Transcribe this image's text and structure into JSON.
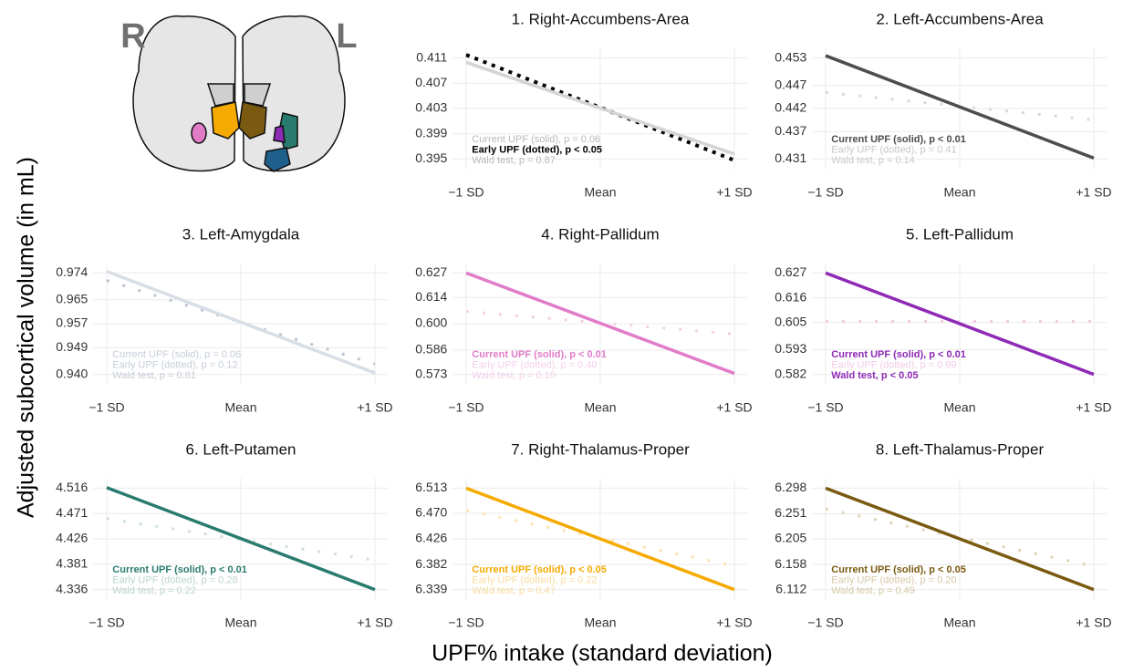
{
  "brain": {
    "right": "R",
    "left": "L"
  },
  "ylabel": "Adjusted subcortical volume (in mL)",
  "xlabel": "UPF% intake (standard deviation)",
  "chart_data": [
    {
      "type": "line",
      "title": "1. Right-Accumbens-Area",
      "x": [
        -1,
        1
      ],
      "xlim": [
        -1.1,
        1.1
      ],
      "xticks": [
        {
          "value": -1,
          "label": "−1 SD"
        },
        {
          "value": 0,
          "label": "Mean"
        },
        {
          "value": 1,
          "label": "+1 SD"
        }
      ],
      "ylim": [
        0.3934,
        0.4126
      ],
      "yticks": [
        0.395,
        0.399,
        0.403,
        0.407,
        0.411
      ],
      "grid": true,
      "series": [
        {
          "style": "solid",
          "color": "#d4d4d4",
          "values": [
            0.4103,
            0.3958
          ]
        },
        {
          "style": "dotted",
          "color": "#000000",
          "values": [
            0.4115,
            0.3948
          ]
        }
      ],
      "annotations": [
        {
          "text": "Current UPF (solid), p = 0.06",
          "color": "#b8b8b8",
          "bold": false
        },
        {
          "text": "Early UPF (dotted), p < 0.05",
          "color": "#000000",
          "bold": true
        },
        {
          "text": "Wald test, p = 0.87",
          "color": "#b8b8b8",
          "bold": false
        }
      ]
    },
    {
      "type": "line",
      "title": "2. Left-Accumbens-Area",
      "x": [
        -1,
        1
      ],
      "xlim": [
        -1.1,
        1.1
      ],
      "xticks": [
        {
          "value": -1,
          "label": "−1 SD"
        },
        {
          "value": 0,
          "label": "Mean"
        },
        {
          "value": 1,
          "label": "+1 SD"
        }
      ],
      "ylim": [
        0.4288,
        0.4552
      ],
      "yticks": [
        0.431,
        0.437,
        0.442,
        0.447,
        0.453
      ],
      "grid": true,
      "series": [
        {
          "style": "solid",
          "color": "#4d4d4d",
          "values": [
            0.4535,
            0.4312
          ]
        },
        {
          "style": "dotted",
          "color": "#d9d9d9",
          "values": [
            0.4455,
            0.4395
          ]
        }
      ],
      "annotations": [
        {
          "text": "Current UPF (solid), p < 0.01",
          "color": "#4d4d4d",
          "bold": true
        },
        {
          "text": "Early UPF (dotted), p = 0.41",
          "color": "#c8c8c8",
          "bold": false
        },
        {
          "text": "Wald test, p = 0.14",
          "color": "#c8c8c8",
          "bold": false
        }
      ]
    },
    {
      "type": "line",
      "title": "3. Left-Amygdala",
      "x": [
        -1,
        1
      ],
      "xlim": [
        -1.1,
        1.1
      ],
      "xticks": [
        {
          "value": -1,
          "label": "−1 SD"
        },
        {
          "value": 0,
          "label": "Mean"
        },
        {
          "value": 1,
          "label": "+1 SD"
        }
      ],
      "ylim": [
        0.9367,
        0.9773
      ],
      "yticks": [
        {
          "value": 0.94,
          "label": "0.940"
        },
        0.949,
        0.957,
        0.965,
        0.974
      ],
      "grid": true,
      "series": [
        {
          "style": "solid",
          "color": "#d8dee6",
          "values": [
            0.9745,
            0.9405
          ]
        },
        {
          "style": "dotted",
          "color": "#bcc5d0",
          "values": [
            0.9715,
            0.9435
          ]
        }
      ],
      "annotations": [
        {
          "text": "Current UPF (solid), p = 0.06",
          "color": "#c5cdd8",
          "bold": false
        },
        {
          "text": "Early UPF (dotted), p = 0.12",
          "color": "#c5cdd8",
          "bold": false
        },
        {
          "text": "Wald test, p = 0.81",
          "color": "#c5cdd8",
          "bold": false
        }
      ]
    },
    {
      "type": "line",
      "title": "4. Right-Pallidum",
      "x": [
        -1,
        1
      ],
      "xlim": [
        -1.1,
        1.1
      ],
      "xticks": [
        {
          "value": -1,
          "label": "−1 SD"
        },
        {
          "value": 0,
          "label": "Mean"
        },
        {
          "value": 1,
          "label": "+1 SD"
        }
      ],
      "ylim": [
        0.5677,
        0.6323
      ],
      "yticks": [
        0.573,
        0.586,
        {
          "value": 0.6,
          "label": "0.600"
        },
        0.614,
        0.627
      ],
      "grid": true,
      "series": [
        {
          "style": "solid",
          "color": "#e07cc8",
          "values": [
            0.627,
            0.5735
          ]
        },
        {
          "style": "dotted",
          "color": "#f3d0ea",
          "values": [
            0.6065,
            0.5945
          ]
        }
      ],
      "annotations": [
        {
          "text": "Current UPF (solid), p < 0.01",
          "color": "#e07cc8",
          "bold": true
        },
        {
          "text": "Early UPF (dotted), p = 0.40",
          "color": "#f3d0ea",
          "bold": false
        },
        {
          "text": "Wald test, p = 0.10",
          "color": "#f3d0ea",
          "bold": false
        }
      ]
    },
    {
      "type": "line",
      "title": "5. Left-Pallidum",
      "x": [
        -1,
        1
      ],
      "xlim": [
        -1.1,
        1.1
      ],
      "xticks": [
        {
          "value": -1,
          "label": "−1 SD"
        },
        {
          "value": 0,
          "label": "Mean"
        },
        {
          "value": 1,
          "label": "+1 SD"
        }
      ],
      "ylim": [
        0.5776,
        0.6314
      ],
      "yticks": [
        0.582,
        0.593,
        0.605,
        0.616,
        0.627
      ],
      "grid": true,
      "series": [
        {
          "style": "solid",
          "color": "#8e2ab5",
          "values": [
            0.627,
            0.582
          ]
        },
        {
          "style": "dotted",
          "color": "#f0cce6",
          "values": [
            0.6055,
            0.6055
          ]
        }
      ],
      "annotations": [
        {
          "text": "Current UPF (solid), p < 0.01",
          "color": "#8e2ab5",
          "bold": true
        },
        {
          "text": "Early UPF (dotted), p = 0.99",
          "color": "#f0cce6",
          "bold": false
        },
        {
          "text": "Wald test, p < 0.05",
          "color": "#8e2ab5",
          "bold": true
        }
      ]
    },
    {
      "type": "line",
      "title": "6. Left-Putamen",
      "x": [
        -1,
        1
      ],
      "xlim": [
        -1.1,
        1.1
      ],
      "xticks": [
        {
          "value": -1,
          "label": "−1 SD"
        },
        {
          "value": 0,
          "label": "Mean"
        },
        {
          "value": 1,
          "label": "+1 SD"
        }
      ],
      "ylim": [
        4.3184,
        4.5336
      ],
      "yticks": [
        4.336,
        4.381,
        4.426,
        4.471,
        4.516
      ],
      "grid": true,
      "series": [
        {
          "style": "solid",
          "color": "#2a7b6f",
          "values": [
            4.517,
            4.336
          ]
        },
        {
          "style": "dotted",
          "color": "#cfe0dc",
          "values": [
            4.462,
            4.388
          ]
        }
      ],
      "annotations": [
        {
          "text": "Current UPF (solid), p < 0.01",
          "color": "#2a7b6f",
          "bold": true
        },
        {
          "text": "Early UPF (dotted), p = 0.28",
          "color": "#bcd4cf",
          "bold": false
        },
        {
          "text": "Wald test, p = 0.22",
          "color": "#bcd4cf",
          "bold": false
        }
      ]
    },
    {
      "type": "line",
      "title": "7. Right-Thalamus-Proper",
      "x": [
        -1,
        1
      ],
      "xlim": [
        -1.1,
        1.1
      ],
      "xticks": [
        {
          "value": -1,
          "label": "−1 SD"
        },
        {
          "value": 0,
          "label": "Mean"
        },
        {
          "value": 1,
          "label": "+1 SD"
        }
      ],
      "ylim": [
        6.322,
        6.53
      ],
      "yticks": [
        6.339,
        6.382,
        6.426,
        {
          "value": 6.47,
          "label": "6.470"
        },
        6.513
      ],
      "grid": true,
      "series": [
        {
          "style": "solid",
          "color": "#f5aa00",
          "values": [
            6.513,
            6.339
          ]
        },
        {
          "style": "dotted",
          "color": "#fbe3b0",
          "values": [
            6.475,
            6.38
          ]
        }
      ],
      "annotations": [
        {
          "text": "Current UPF (solid), p < 0.05",
          "color": "#f5aa00",
          "bold": true
        },
        {
          "text": "Early UPF (dotted), p = 0.22",
          "color": "#f8dca0",
          "bold": false
        },
        {
          "text": "Wald test, p = 0.47",
          "color": "#f8dca0",
          "bold": false
        }
      ]
    },
    {
      "type": "line",
      "title": "8. Left-Thalamus-Proper",
      "x": [
        -1,
        1
      ],
      "xlim": [
        -1.1,
        1.1
      ],
      "xticks": [
        {
          "value": -1,
          "label": "−1 SD"
        },
        {
          "value": 0,
          "label": "Mean"
        },
        {
          "value": 1,
          "label": "+1 SD"
        }
      ],
      "ylim": [
        6.0938,
        6.3162
      ],
      "yticks": [
        6.112,
        6.158,
        6.205,
        6.251,
        6.298
      ],
      "grid": true,
      "series": [
        {
          "style": "solid",
          "color": "#7a5a10",
          "values": [
            6.298,
            6.112
          ]
        },
        {
          "style": "dotted",
          "color": "#e0d4b8",
          "values": [
            6.26,
            6.155
          ]
        }
      ],
      "annotations": [
        {
          "text": "Current UPF (solid), p < 0.05",
          "color": "#7a5a10",
          "bold": true
        },
        {
          "text": "Early UPF (dotted), p = 0.20",
          "color": "#d6c8a6",
          "bold": false
        },
        {
          "text": "Wald test, p = 0.49",
          "color": "#d6c8a6",
          "bold": false
        }
      ]
    }
  ]
}
